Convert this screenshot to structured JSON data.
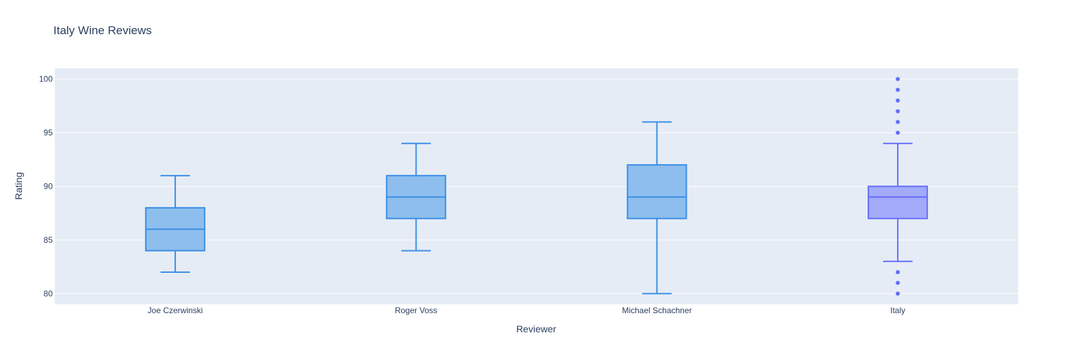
{
  "chart_data": {
    "type": "box",
    "title": "Italy Wine Reviews",
    "xlabel": "Reviewer",
    "ylabel": "Rating",
    "ylim": [
      79,
      101
    ],
    "yticks": [
      80,
      85,
      90,
      95,
      100
    ],
    "grid": true,
    "categories": [
      "Joe Czerwinski",
      "Roger Voss",
      "Michael Schachner",
      "Italy"
    ],
    "boxes": [
      {
        "category": "Joe Czerwinski",
        "min": 82,
        "q1": 84,
        "median": 86,
        "q3": 88,
        "max": 91,
        "outliers": [],
        "color": "#3a8ee6",
        "fill": "#8dbeed"
      },
      {
        "category": "Roger Voss",
        "min": 84,
        "q1": 87,
        "median": 89,
        "q3": 91,
        "max": 94,
        "outliers": [],
        "color": "#3a8ee6",
        "fill": "#8dbeed"
      },
      {
        "category": "Michael Schachner",
        "min": 80,
        "q1": 87,
        "median": 89,
        "q3": 92,
        "max": 96,
        "outliers": [],
        "color": "#3a8ee6",
        "fill": "#8dbeed"
      },
      {
        "category": "Italy",
        "min": 83,
        "q1": 87,
        "median": 89,
        "q3": 90,
        "max": 94,
        "outliers": [
          80,
          81,
          82,
          95,
          96,
          97,
          98,
          99,
          100
        ],
        "color": "#636efa",
        "fill": "#a3aaf8"
      }
    ]
  },
  "colors": {
    "plot_bg": "#e5ecf6",
    "grid": "#ffffff",
    "text": "#2a3f5f"
  }
}
